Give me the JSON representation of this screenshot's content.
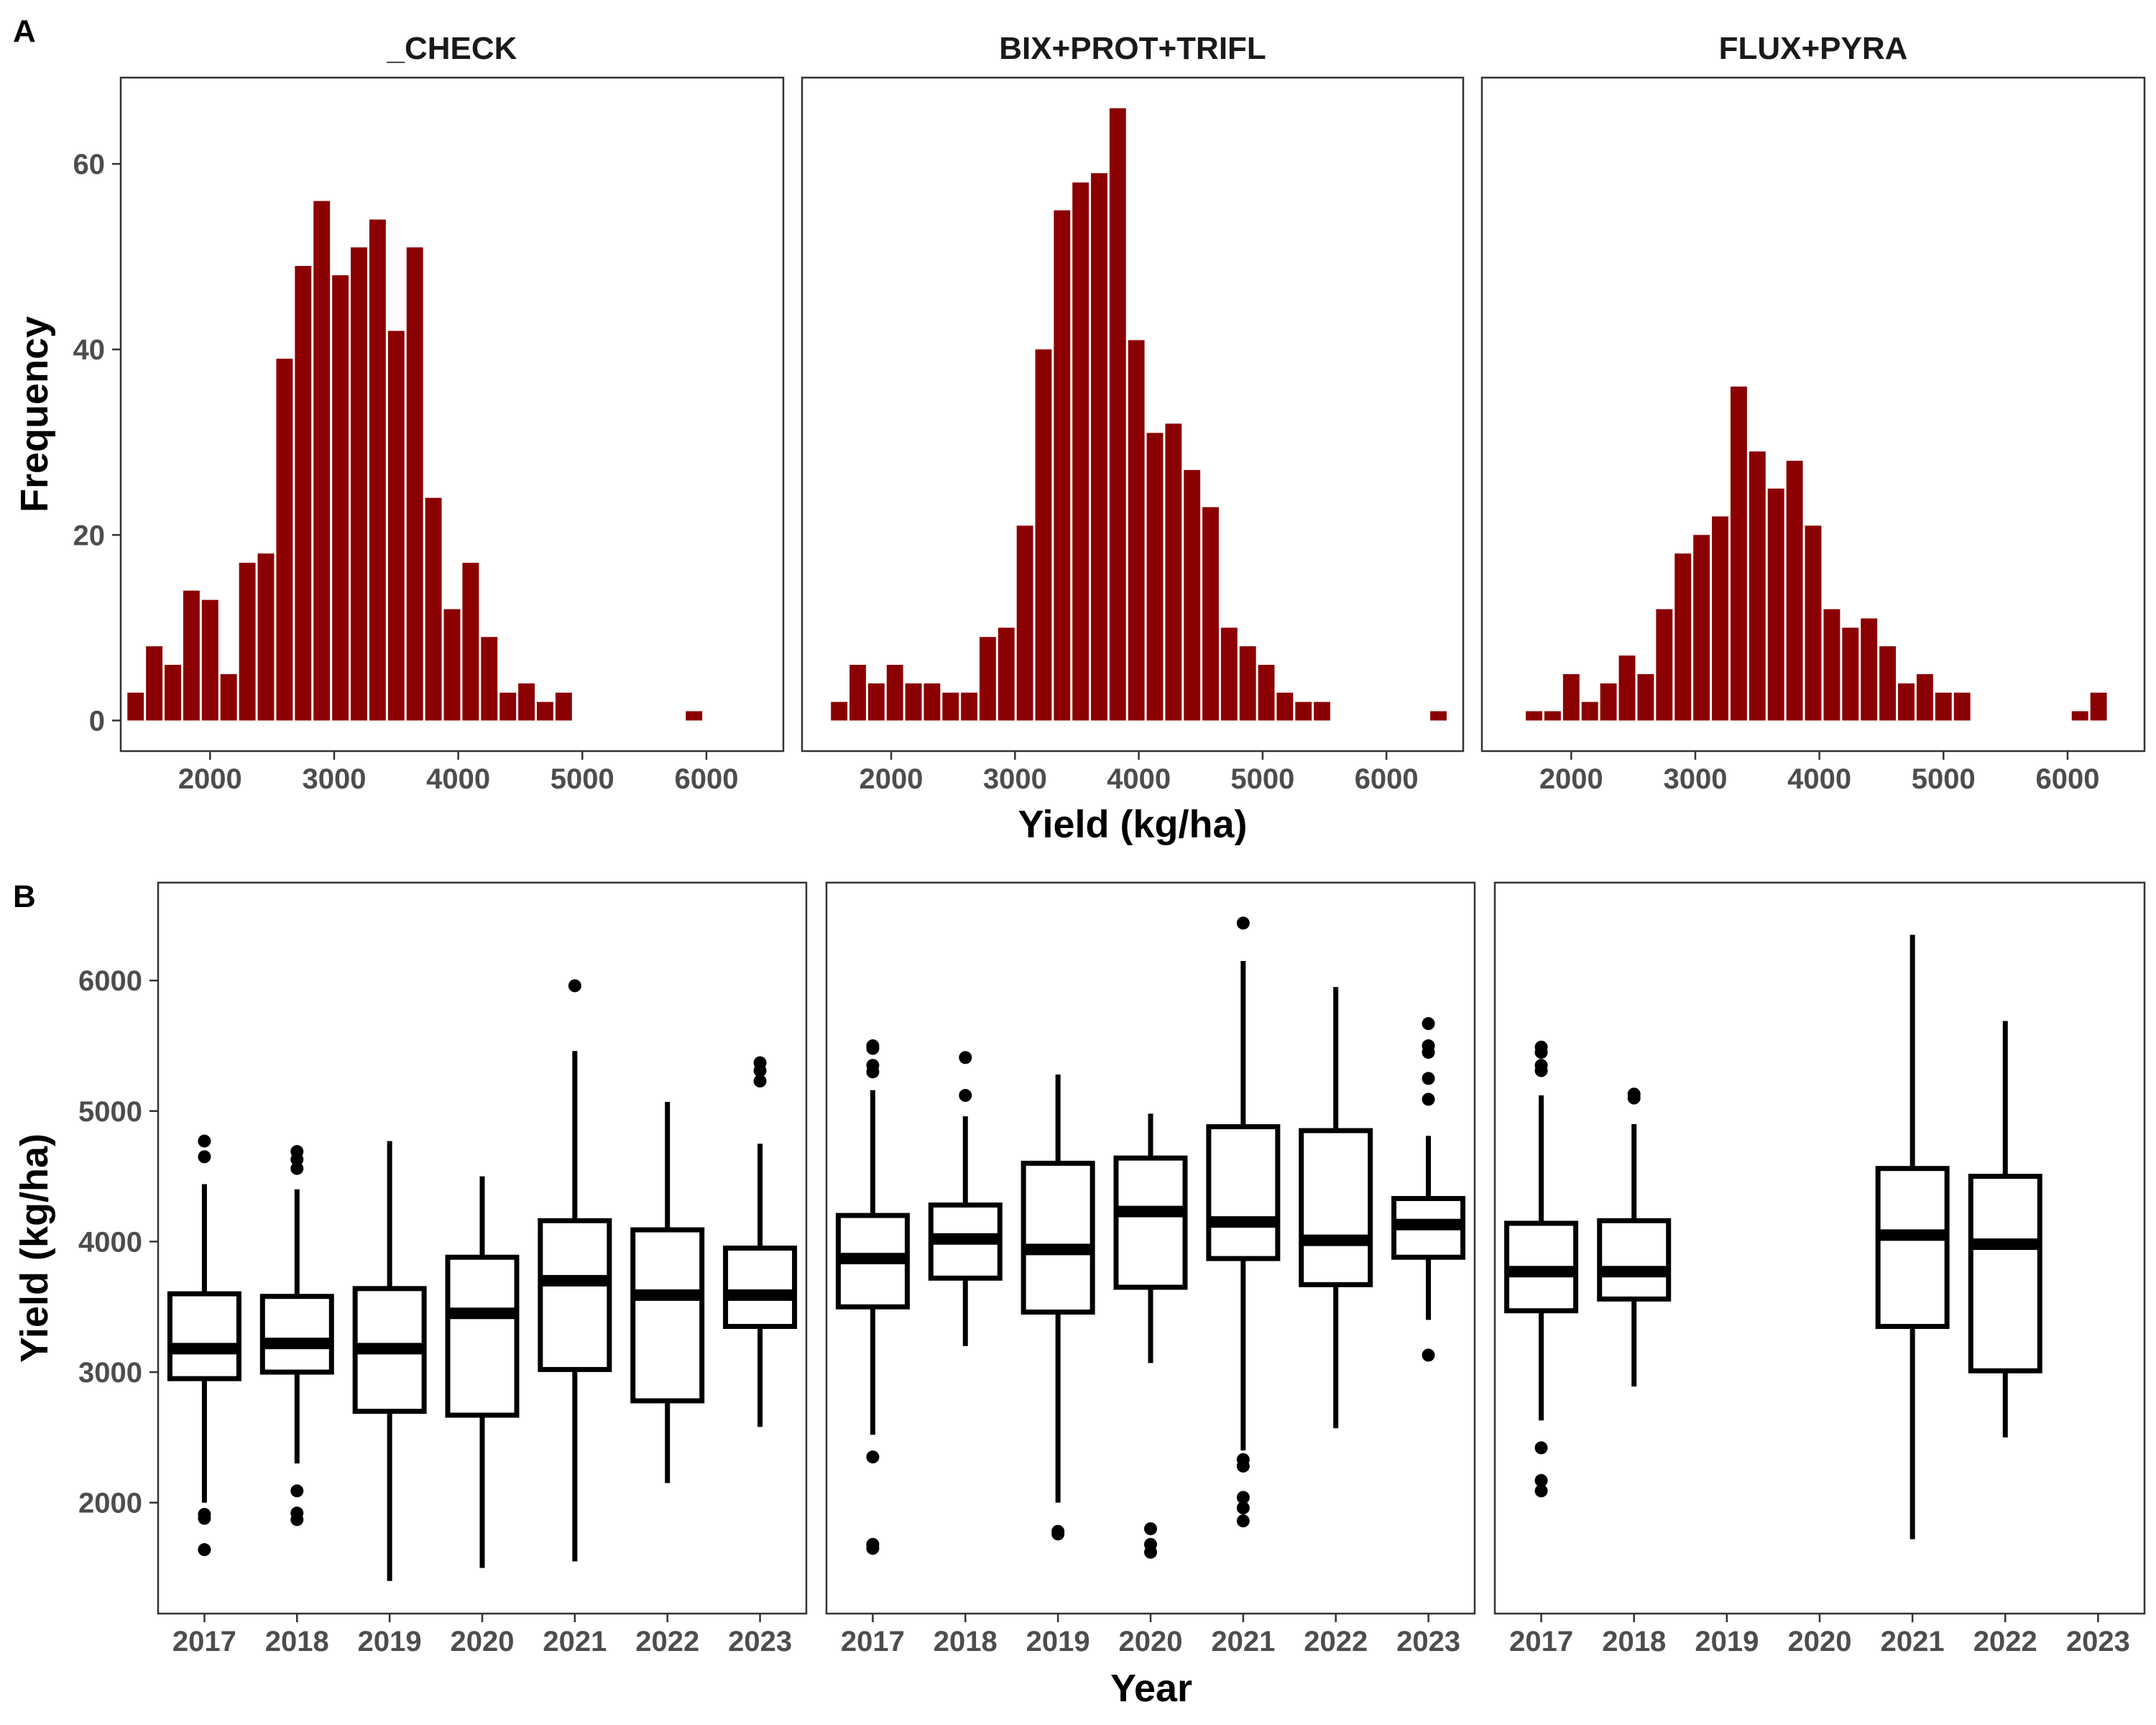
{
  "panel_a_label": "A",
  "panel_b_label": "B",
  "chart_data": [
    {
      "type": "bar",
      "panel": "A",
      "xlabel": "Yield (kg/ha)",
      "ylabel": "Frequency",
      "xlim": [
        1280,
        6620
      ],
      "ylim": [
        -3.3,
        69.3
      ],
      "xticks": [
        "2000",
        "3000",
        "4000",
        "5000",
        "6000"
      ],
      "yticks": [
        "0",
        "20",
        "40",
        "60"
      ],
      "grid": false,
      "bin_width": 150,
      "bar_color": "#8B0000",
      "facets": [
        {
          "label": "_CHECK",
          "bins": [
            {
              "x": 1400,
              "y": 3
            },
            {
              "x": 1550,
              "y": 8
            },
            {
              "x": 1700,
              "y": 6
            },
            {
              "x": 1850,
              "y": 14
            },
            {
              "x": 2000,
              "y": 13
            },
            {
              "x": 2150,
              "y": 5
            },
            {
              "x": 2300,
              "y": 17
            },
            {
              "x": 2450,
              "y": 18
            },
            {
              "x": 2600,
              "y": 39
            },
            {
              "x": 2750,
              "y": 49
            },
            {
              "x": 2900,
              "y": 56
            },
            {
              "x": 3050,
              "y": 48
            },
            {
              "x": 3200,
              "y": 51
            },
            {
              "x": 3350,
              "y": 54
            },
            {
              "x": 3500,
              "y": 42
            },
            {
              "x": 3650,
              "y": 51
            },
            {
              "x": 3800,
              "y": 24
            },
            {
              "x": 3950,
              "y": 12
            },
            {
              "x": 4100,
              "y": 17
            },
            {
              "x": 4250,
              "y": 9
            },
            {
              "x": 4400,
              "y": 3
            },
            {
              "x": 4550,
              "y": 4
            },
            {
              "x": 4700,
              "y": 2
            },
            {
              "x": 4850,
              "y": 3
            },
            {
              "x": 5900,
              "y": 1
            }
          ]
        },
        {
          "label": "BIX+PROT+TRIFL",
          "bins": [
            {
              "x": 1580,
              "y": 2
            },
            {
              "x": 1730,
              "y": 6
            },
            {
              "x": 1880,
              "y": 4
            },
            {
              "x": 2030,
              "y": 6
            },
            {
              "x": 2180,
              "y": 4
            },
            {
              "x": 2330,
              "y": 4
            },
            {
              "x": 2480,
              "y": 3
            },
            {
              "x": 2630,
              "y": 3
            },
            {
              "x": 2780,
              "y": 9
            },
            {
              "x": 2930,
              "y": 10
            },
            {
              "x": 3080,
              "y": 21
            },
            {
              "x": 3230,
              "y": 40
            },
            {
              "x": 3380,
              "y": 55
            },
            {
              "x": 3530,
              "y": 58
            },
            {
              "x": 3680,
              "y": 59
            },
            {
              "x": 3830,
              "y": 66
            },
            {
              "x": 3980,
              "y": 41
            },
            {
              "x": 4130,
              "y": 31
            },
            {
              "x": 4280,
              "y": 32
            },
            {
              "x": 4430,
              "y": 27
            },
            {
              "x": 4580,
              "y": 23
            },
            {
              "x": 4730,
              "y": 10
            },
            {
              "x": 4880,
              "y": 8
            },
            {
              "x": 5030,
              "y": 6
            },
            {
              "x": 5180,
              "y": 3
            },
            {
              "x": 5330,
              "y": 2
            },
            {
              "x": 5480,
              "y": 2
            },
            {
              "x": 6420,
              "y": 1
            }
          ]
        },
        {
          "label": "FLUX+PYRA",
          "bins": [
            {
              "x": 1700,
              "y": 1
            },
            {
              "x": 1850,
              "y": 1
            },
            {
              "x": 2000,
              "y": 5
            },
            {
              "x": 2150,
              "y": 2
            },
            {
              "x": 2300,
              "y": 4
            },
            {
              "x": 2450,
              "y": 7
            },
            {
              "x": 2600,
              "y": 5
            },
            {
              "x": 2750,
              "y": 12
            },
            {
              "x": 2900,
              "y": 18
            },
            {
              "x": 3050,
              "y": 20
            },
            {
              "x": 3200,
              "y": 22
            },
            {
              "x": 3350,
              "y": 36
            },
            {
              "x": 3500,
              "y": 29
            },
            {
              "x": 3650,
              "y": 25
            },
            {
              "x": 3800,
              "y": 28
            },
            {
              "x": 3950,
              "y": 21
            },
            {
              "x": 4100,
              "y": 12
            },
            {
              "x": 4250,
              "y": 10
            },
            {
              "x": 4400,
              "y": 11
            },
            {
              "x": 4550,
              "y": 8
            },
            {
              "x": 4700,
              "y": 4
            },
            {
              "x": 4850,
              "y": 5
            },
            {
              "x": 5000,
              "y": 3
            },
            {
              "x": 5150,
              "y": 3
            },
            {
              "x": 6100,
              "y": 1
            },
            {
              "x": 6250,
              "y": 3
            }
          ]
        }
      ]
    },
    {
      "type": "boxplot",
      "panel": "B",
      "xlabel": "Year",
      "ylabel": "Yield (kg/ha)",
      "ylim": [
        1150,
        6750
      ],
      "yticks": [
        "2000",
        "3000",
        "4000",
        "5000",
        "6000"
      ],
      "categories": [
        "2017",
        "2018",
        "2019",
        "2020",
        "2021",
        "2022",
        "2023"
      ],
      "grid": false,
      "facets": [
        {
          "boxes": [
            {
              "year": "2017",
              "lower": 2000,
              "q1": 2950,
              "median": 3180,
              "q3": 3600,
              "upper": 4440,
              "outliers": [
                4770,
                4650,
                1910,
                1880,
                1640
              ]
            },
            {
              "year": "2018",
              "lower": 2300,
              "q1": 3000,
              "median": 3220,
              "q3": 3580,
              "upper": 4400,
              "outliers": [
                4690,
                4630,
                4560,
                2090,
                1920,
                1870
              ]
            },
            {
              "year": "2019",
              "lower": 1400,
              "q1": 2700,
              "median": 3180,
              "q3": 3640,
              "upper": 4770,
              "outliers": []
            },
            {
              "year": "2020",
              "lower": 1500,
              "q1": 2670,
              "median": 3450,
              "q3": 3880,
              "upper": 4500,
              "outliers": []
            },
            {
              "year": "2021",
              "lower": 1550,
              "q1": 3020,
              "median": 3700,
              "q3": 4160,
              "upper": 5460,
              "outliers": [
                5960
              ]
            },
            {
              "year": "2022",
              "lower": 2150,
              "q1": 2780,
              "median": 3590,
              "q3": 4090,
              "upper": 5070,
              "outliers": []
            },
            {
              "year": "2023",
              "lower": 2580,
              "q1": 3350,
              "median": 3590,
              "q3": 3950,
              "upper": 4750,
              "outliers": [
                5370,
                5310,
                5230
              ]
            }
          ]
        },
        {
          "boxes": [
            {
              "year": "2017",
              "lower": 2520,
              "q1": 3500,
              "median": 3870,
              "q3": 4200,
              "upper": 5160,
              "outliers": [
                5500,
                5480,
                5350,
                5300,
                2350,
                1680,
                1650
              ]
            },
            {
              "year": "2018",
              "lower": 3200,
              "q1": 3720,
              "median": 4020,
              "q3": 4280,
              "upper": 4960,
              "outliers": [
                5410,
                5120
              ]
            },
            {
              "year": "2019",
              "lower": 2000,
              "q1": 3460,
              "median": 3940,
              "q3": 4600,
              "upper": 5280,
              "outliers": [
                1780,
                1760
              ]
            },
            {
              "year": "2020",
              "lower": 3070,
              "q1": 3650,
              "median": 4230,
              "q3": 4640,
              "upper": 4980,
              "outliers": [
                1800,
                1680,
                1620
              ]
            },
            {
              "year": "2021",
              "lower": 2400,
              "q1": 3870,
              "median": 4150,
              "q3": 4880,
              "upper": 6150,
              "outliers": [
                6440,
                2330,
                2280,
                2040,
                1960,
                1860
              ]
            },
            {
              "year": "2022",
              "lower": 2570,
              "q1": 3670,
              "median": 4010,
              "q3": 4850,
              "upper": 5950,
              "outliers": []
            },
            {
              "year": "2023",
              "lower": 3400,
              "q1": 3880,
              "median": 4130,
              "q3": 4330,
              "upper": 4810,
              "outliers": [
                5670,
                5500,
                5450,
                5250,
                5090,
                3130
              ]
            }
          ]
        },
        {
          "boxes": [
            {
              "year": "2017",
              "lower": 2630,
              "q1": 3470,
              "median": 3770,
              "q3": 4140,
              "upper": 5120,
              "outliers": [
                5490,
                5450,
                5350,
                5310,
                2420,
                2170,
                2090
              ]
            },
            {
              "year": "2018",
              "lower": 2890,
              "q1": 3560,
              "median": 3770,
              "q3": 4160,
              "upper": 4900,
              "outliers": [
                5130,
                5100
              ]
            },
            {
              "year": "2021",
              "lower": 1720,
              "q1": 3350,
              "median": 4050,
              "q3": 4560,
              "upper": 6350,
              "outliers": []
            },
            {
              "year": "2022",
              "lower": 2500,
              "q1": 3010,
              "median": 3980,
              "q3": 4500,
              "upper": 5690,
              "outliers": []
            }
          ]
        }
      ]
    }
  ]
}
